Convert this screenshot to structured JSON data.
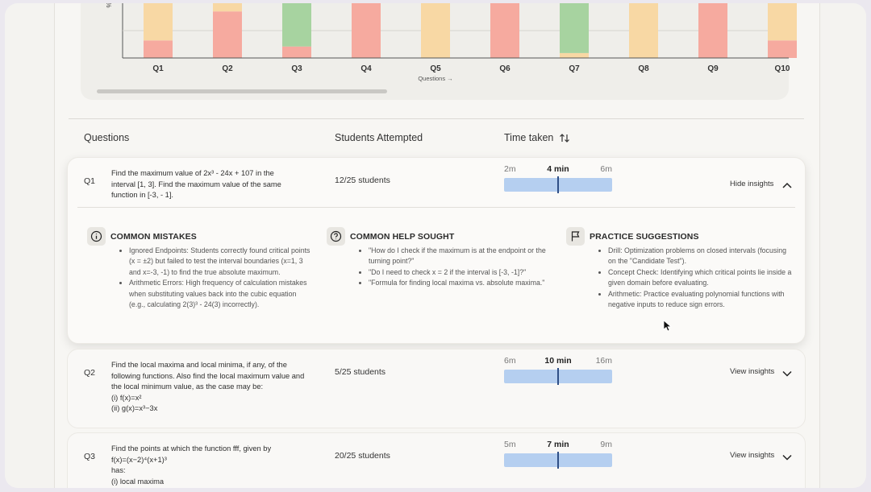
{
  "chart_data": {
    "type": "bar",
    "stacked": true,
    "y_label": "%",
    "x_label": "Questions →",
    "categories": [
      "Q1",
      "Q2",
      "Q3",
      "Q4",
      "Q5",
      "Q6",
      "Q7",
      "Q8",
      "Q9",
      "Q10"
    ],
    "ylim": [
      0,
      100
    ],
    "series": [
      {
        "color": "#f6aa9f",
        "values": [
          32,
          85,
          21,
          100,
          0,
          100,
          0,
          0,
          100,
          32
        ]
      },
      {
        "color": "#f8d8a4",
        "values": [
          68,
          15,
          0,
          0,
          100,
          0,
          9,
          100,
          0,
          68
        ]
      },
      {
        "color": "#a7d3a0",
        "values": [
          0,
          0,
          79,
          0,
          0,
          0,
          91,
          0,
          0,
          0
        ]
      }
    ]
  },
  "table": {
    "headers": [
      "Questions",
      "Students Attempted",
      "Time taken"
    ],
    "rows": [
      {
        "id": "Q1",
        "question": [
          "Find the maximum value of 2x³ - 24x + 107 in the",
          "interval [1, 3]. Find the maximum value of the same",
          "function in [-3, - 1]."
        ],
        "attempted": "12/25 students",
        "time": {
          "low": "2m",
          "mid": "4 min",
          "high": "6m"
        },
        "toggle": "Hide insights",
        "insights": [
          {
            "title": "COMMON MISTAKES",
            "items": [
              "Ignored Endpoints: Students correctly found critical points (x = ±2) but failed to test the interval boundaries (x=1, 3 and x=-3, -1) to find the true absolute maximum.",
              "Arithmetic Errors: High frequency of calculation mistakes when substituting values back into the cubic equation (e.g., calculating 2(3)³ - 24(3) incorrectly)."
            ]
          },
          {
            "title": "COMMON HELP SOUGHT",
            "items": [
              "\"How do I check if the maximum is at the endpoint or the turning point?\"",
              "\"Do I need to check x = 2 if the interval is [-3, -1]?\"",
              "\"Formula for finding local maxima vs. absolute maxima.\""
            ]
          },
          {
            "title": "PRACTICE SUGGESTIONS",
            "items": [
              "Drill: Optimization problems on closed intervals (focusing on the \"Candidate Test\").",
              "Concept Check: Identifying which critical points lie inside a given domain before evaluating.",
              "Arithmetic: Practice evaluating polynomial functions with negative inputs to reduce sign errors."
            ]
          }
        ]
      },
      {
        "id": "Q2",
        "question": [
          "Find the local maxima and local minima, if any, of the",
          "following functions. Also find the local maximum value and",
          "the local minimum value, as the case may be:",
          "(i)    f(x)=x²",
          "(ii)   g(x)=x³−3x"
        ],
        "attempted": "5/25 students",
        "time": {
          "low": "6m",
          "mid": "10 min",
          "high": "16m"
        },
        "toggle": "View insights"
      },
      {
        "id": "Q3",
        "question": [
          "Find the points at which the function fff, given by",
          "f(x)=(x−2)⁴(x+1)³",
          "has:",
          "(i) local maxima"
        ],
        "attempted": "20/25 students",
        "time": {
          "low": "5m",
          "mid": "7 min",
          "high": "9m"
        },
        "toggle": "View insights"
      }
    ]
  }
}
